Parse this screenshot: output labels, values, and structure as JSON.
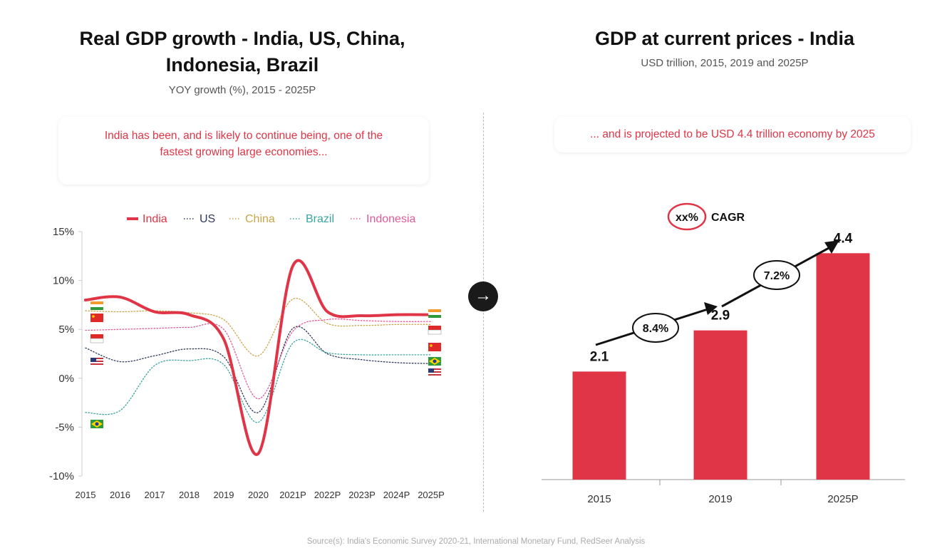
{
  "left": {
    "title_line1": "Real GDP growth - India, US, China,",
    "title_line2": "Indonesia, Brazil",
    "subtitle": "YOY growth (%), 2015 - 2025P",
    "callout_line1": "India has been, and is likely to continue being, one of the",
    "callout_line2": "fastest growing large economies..."
  },
  "right": {
    "title": "GDP at current prices - India",
    "subtitle": "USD trillion, 2015, 2019 and 2025P",
    "callout": "... and is projected to be USD 4.4 trillion economy by 2025",
    "cagr_badge": "xx%",
    "cagr_label": "CAGR"
  },
  "source": "Source(s): India's Economic Survey 2020-21, International Monetary Fund, RedSeer Analysis",
  "arrow_icon": "arrow-right-icon",
  "colors": {
    "accent": "#e03546",
    "us": "#2e3a5a",
    "china": "#c9a64a",
    "brazil": "#3aa6a0",
    "indonesia": "#e05a9a"
  },
  "chart_data": [
    {
      "type": "line",
      "title": "Real GDP growth - India, US, China, Indonesia, Brazil",
      "subtitle": "YOY growth (%), 2015 - 2025P",
      "x": [
        "2015",
        "2016",
        "2017",
        "2018",
        "2019",
        "2020",
        "2021P",
        "2022P",
        "2023P",
        "2024P",
        "2025P"
      ],
      "ytick_labels": [
        "15%",
        "10%",
        "5%",
        "0%",
        "-5%",
        "-10%"
      ],
      "ylim": [
        -10,
        15
      ],
      "legend_position": "top",
      "series": [
        {
          "name": "India",
          "color": "#e03546",
          "style": "solid",
          "values": [
            8.0,
            8.3,
            6.8,
            6.5,
            4.0,
            -7.7,
            11.5,
            6.8,
            6.4,
            6.5,
            6.5
          ]
        },
        {
          "name": "US",
          "color": "#2e3a5a",
          "style": "dotted",
          "values": [
            3.1,
            1.7,
            2.3,
            3.0,
            2.2,
            -3.5,
            5.1,
            2.5,
            1.9,
            1.6,
            1.5
          ]
        },
        {
          "name": "China",
          "color": "#c9a64a",
          "style": "dotted",
          "values": [
            6.9,
            6.8,
            6.9,
            6.7,
            6.0,
            2.3,
            8.1,
            5.6,
            5.4,
            5.5,
            5.5
          ]
        },
        {
          "name": "Brazil",
          "color": "#3aa6a0",
          "style": "dotted",
          "values": [
            -3.5,
            -3.3,
            1.3,
            1.8,
            1.4,
            -4.5,
            3.6,
            2.6,
            2.4,
            2.4,
            2.4
          ]
        },
        {
          "name": "Indonesia",
          "color": "#e05a9a",
          "style": "dotted",
          "values": [
            4.9,
            5.0,
            5.1,
            5.2,
            5.0,
            -2.1,
            4.8,
            6.0,
            5.9,
            5.8,
            5.8
          ]
        }
      ]
    },
    {
      "type": "bar",
      "title": "GDP at current prices - India",
      "subtitle": "USD trillion, 2015, 2019 and 2025P",
      "categories": [
        "2015",
        "2019",
        "2025P"
      ],
      "values": [
        2.1,
        2.9,
        4.4
      ],
      "value_labels": [
        "2.1",
        "2.9",
        "4.4"
      ],
      "cagr_labels": [
        "8.4%",
        "7.2%"
      ],
      "ylim": [
        0,
        5
      ]
    }
  ]
}
